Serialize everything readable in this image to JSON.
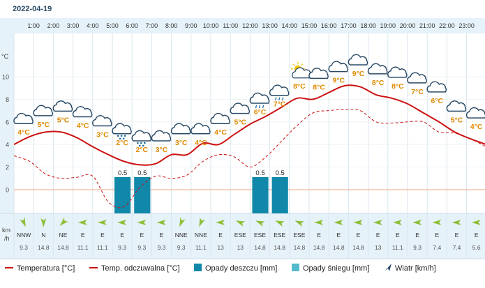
{
  "header": {
    "date": "2022-04-19"
  },
  "units": {
    "temp": "°C",
    "wind_top": "km",
    "wind_bottom": "/h"
  },
  "colors": {
    "temp": "#cc1111",
    "feels": "#cc1111",
    "rain": "#1188aa",
    "snow": "#55bbcc",
    "zero": "#f0a080",
    "grid": "#d9e6ee",
    "band": "#e6f2fa"
  },
  "legend": {
    "temperature": "Temperatura [°C]",
    "feels_like": "Temp. odczuwalna [°C]",
    "rain": "Opady deszczu [mm]",
    "snow": "Opady śniegu [mm]",
    "wind": "Wiatr [km/h]"
  },
  "chart_data": {
    "type": "line",
    "y_ticks": [
      0,
      2,
      4,
      6,
      8,
      10
    ],
    "ylim": [
      -2,
      12
    ],
    "hours": [
      "1:00",
      "2:00",
      "3:00",
      "4:00",
      "5:00",
      "6:00",
      "7:00",
      "8:00",
      "9:00",
      "10:00",
      "11:00",
      "12:00",
      "13:00",
      "14:00",
      "15:00",
      "16:00",
      "17:00",
      "18:00",
      "19:00",
      "20:00",
      "21:00",
      "22:00",
      "23:00"
    ],
    "temp_points": [
      4.0,
      4.7,
      5.1,
      5.1,
      4.6,
      3.8,
      3.1,
      2.5,
      2.2,
      2.3,
      3.1,
      3.1,
      4.1,
      4.0,
      4.9,
      5.8,
      6.5,
      7.3,
      8.1,
      8.0,
      8.6,
      9.2,
      9.1,
      8.4,
      8.1,
      7.6,
      6.8,
      6.0,
      5.1,
      4.5,
      4.0
    ],
    "feels_points": [
      3.0,
      2.5,
      1.4,
      1.0,
      1.1,
      1.2,
      -1.1,
      -1.5,
      0.2,
      1.2,
      1.0,
      1.3,
      2.5,
      3.1,
      2.9,
      2.0,
      2.9,
      4.3,
      5.7,
      6.8,
      7.0,
      7.1,
      7.0,
      6.0,
      5.9,
      6.0,
      6.0,
      5.1,
      5.0,
      4.5,
      3.8
    ],
    "icons": [
      {
        "kind": "cloud",
        "temp": "4°C"
      },
      {
        "kind": "cloud",
        "temp": "5°C"
      },
      {
        "kind": "cloud",
        "temp": "5°C"
      },
      {
        "kind": "cloud",
        "temp": "4°C"
      },
      {
        "kind": "cloud",
        "temp": "3°C"
      },
      {
        "kind": "snow",
        "temp": "2°C"
      },
      {
        "kind": "snow",
        "temp": "2°C"
      },
      {
        "kind": "cloud",
        "temp": "3°C"
      },
      {
        "kind": "cloud",
        "temp": "3°C"
      },
      {
        "kind": "cloud",
        "temp": "4°C"
      },
      {
        "kind": "cloud",
        "temp": "4°C"
      },
      {
        "kind": "cloud",
        "temp": "5°C"
      },
      {
        "kind": "rain",
        "temp": "6°C"
      },
      {
        "kind": "rain",
        "temp": "7°C"
      },
      {
        "kind": "sun",
        "temp": "8°C"
      },
      {
        "kind": "cloud",
        "temp": "8°C"
      },
      {
        "kind": "cloud",
        "temp": "9°C"
      },
      {
        "kind": "cloud",
        "temp": "9°C"
      },
      {
        "kind": "cloud",
        "temp": "8°C"
      },
      {
        "kind": "cloud",
        "temp": "8°C"
      },
      {
        "kind": "cloud",
        "temp": "7°C"
      },
      {
        "kind": "cloud",
        "temp": "6°C"
      },
      {
        "kind": "cloud",
        "temp": "5°C"
      },
      {
        "kind": "cloud",
        "temp": "4°C"
      }
    ],
    "precip": [
      {
        "slot": 5,
        "value": 0.5,
        "label": "0.5"
      },
      {
        "slot": 6,
        "value": 0.5,
        "label": "0.5"
      },
      {
        "slot": 12,
        "value": 0.5,
        "label": "0.5"
      },
      {
        "slot": 13,
        "value": 0.5,
        "label": "0.5"
      }
    ],
    "wind_dir": [
      "NNW",
      "N",
      "NE",
      "E",
      "E",
      "E",
      "E",
      "E",
      "NNE",
      "NNE",
      "E",
      "ESE",
      "ESE",
      "ESE",
      "ESE",
      "E",
      "E",
      "E",
      "E",
      "E",
      "E",
      "E",
      "E",
      "E"
    ],
    "wind_deg": [
      337,
      0,
      45,
      90,
      90,
      90,
      90,
      90,
      22,
      22,
      90,
      112,
      112,
      112,
      112,
      90,
      90,
      90,
      90,
      90,
      90,
      90,
      90,
      90
    ],
    "wind_speed": [
      "9.3",
      "14.8",
      "14.8",
      "11.1",
      "11.1",
      "9.3",
      "9.3",
      "9.3",
      "9.3",
      "11.1",
      "13",
      "13",
      "14.8",
      "14.8",
      "14.8",
      "14.8",
      "14.8",
      "14.8",
      "13",
      "11.1",
      "9.3",
      "7.4",
      "7.4",
      "5.6"
    ]
  }
}
